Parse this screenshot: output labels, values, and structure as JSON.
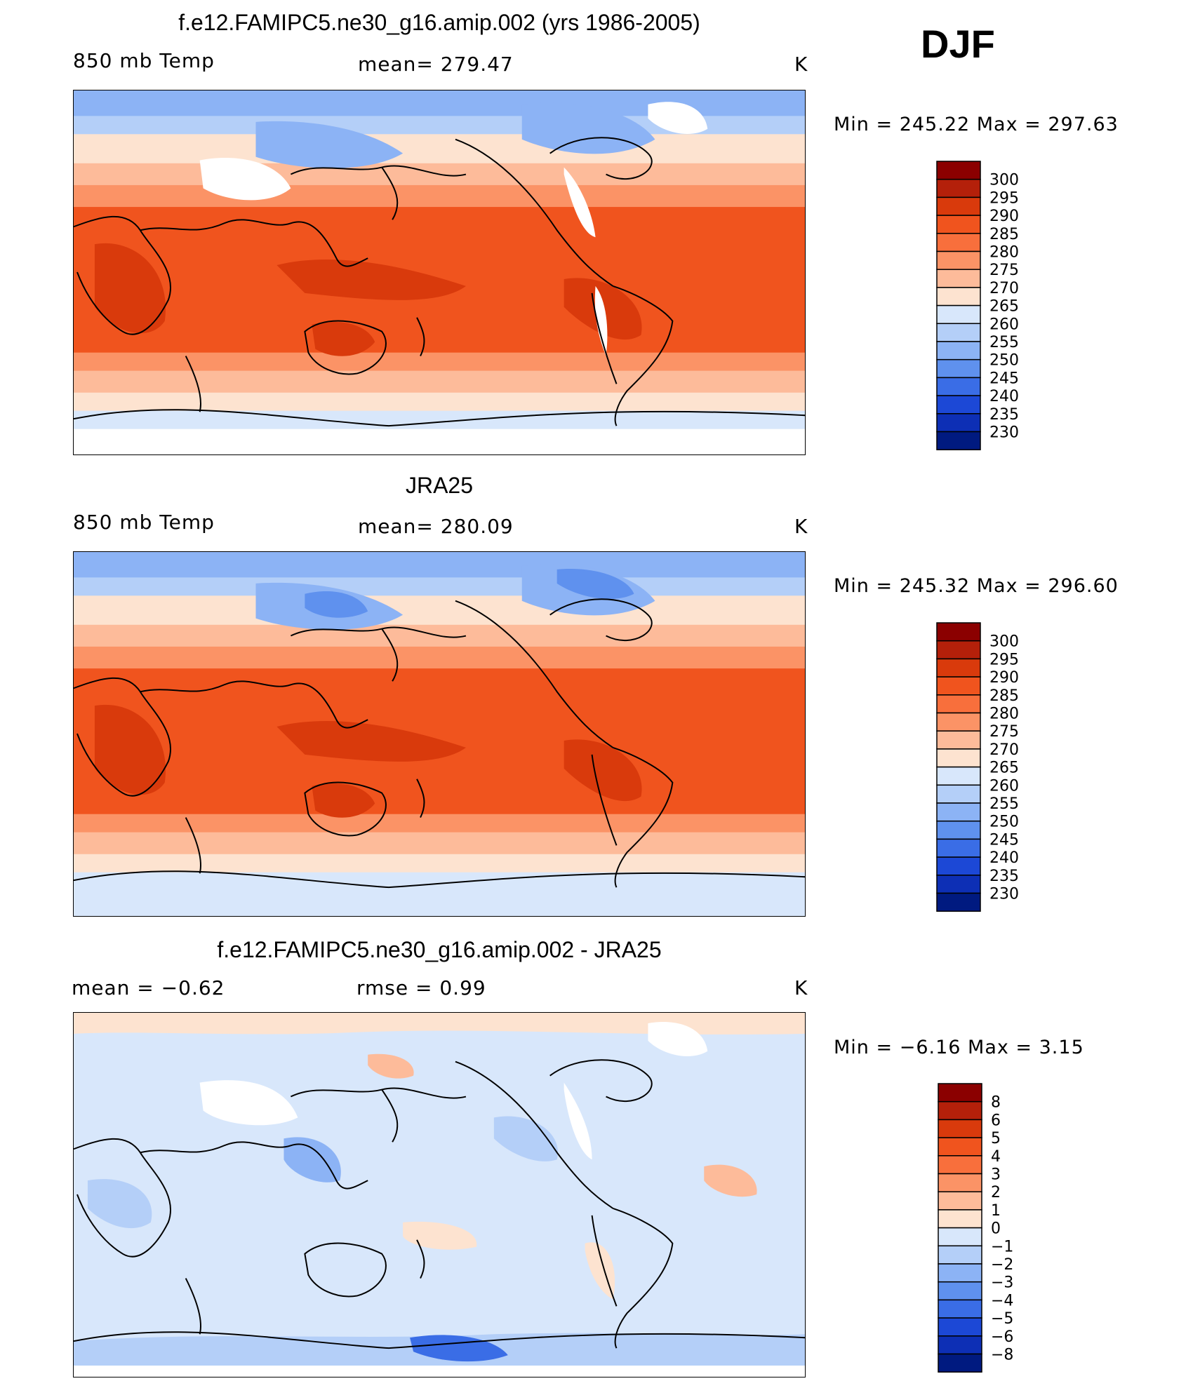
{
  "season": "DJF",
  "panels": [
    {
      "title": "f.e12.FAMIPC5.ne30_g16.amip.002 (yrs 1986-2005)",
      "left_label": "850 mb Temp",
      "center_label": "mean= 279.47",
      "units": "K",
      "minmax": "Min = 245.22 Max = 297.63",
      "colorbar": {
        "labels": [
          "300",
          "295",
          "290",
          "285",
          "280",
          "275",
          "270",
          "265",
          "260",
          "255",
          "250",
          "245",
          "240",
          "235",
          "230"
        ],
        "colors": [
          "#8b0000",
          "#b4200a",
          "#d93a0c",
          "#f0541e",
          "#f86f3c",
          "#fb9366",
          "#fdbb9a",
          "#fde3d0",
          "#d8e7fb",
          "#b4cff8",
          "#8cb3f5",
          "#5f91ee",
          "#3a6de6",
          "#1c48d6",
          "#0d2fb5",
          "#001a80"
        ]
      },
      "map_kind": "abs_model"
    },
    {
      "title": "JRA25",
      "left_label": "850 mb Temp",
      "center_label": "mean= 280.09",
      "units": "K",
      "minmax": "Min = 245.32 Max = 296.60",
      "colorbar": {
        "labels": [
          "300",
          "295",
          "290",
          "285",
          "280",
          "275",
          "270",
          "265",
          "260",
          "255",
          "250",
          "245",
          "240",
          "235",
          "230"
        ],
        "colors": [
          "#8b0000",
          "#b4200a",
          "#d93a0c",
          "#f0541e",
          "#f86f3c",
          "#fb9366",
          "#fdbb9a",
          "#fde3d0",
          "#d8e7fb",
          "#b4cff8",
          "#8cb3f5",
          "#5f91ee",
          "#3a6de6",
          "#1c48d6",
          "#0d2fb5",
          "#001a80"
        ]
      },
      "map_kind": "abs_obs"
    },
    {
      "title": "f.e12.FAMIPC5.ne30_g16.amip.002 - JRA25",
      "left_label": "mean =   −0.62",
      "center_label": "rmse =    0.99",
      "units": "K",
      "minmax": "Min =   −6.16 Max =     3.15",
      "colorbar": {
        "labels": [
          "8",
          "6",
          "5",
          "4",
          "3",
          "2",
          "1",
          "0",
          "−1",
          "−2",
          "−3",
          "−4",
          "−5",
          "−6",
          "−8"
        ],
        "colors": [
          "#8b0000",
          "#b4200a",
          "#d93a0c",
          "#f0541e",
          "#f86f3c",
          "#fb9366",
          "#fdbb9a",
          "#fde3d0",
          "#d8e7fb",
          "#b4cff8",
          "#8cb3f5",
          "#5f91ee",
          "#3a6de6",
          "#1c48d6",
          "#0d2fb5",
          "#001a80"
        ]
      },
      "map_kind": "diff"
    }
  ]
}
